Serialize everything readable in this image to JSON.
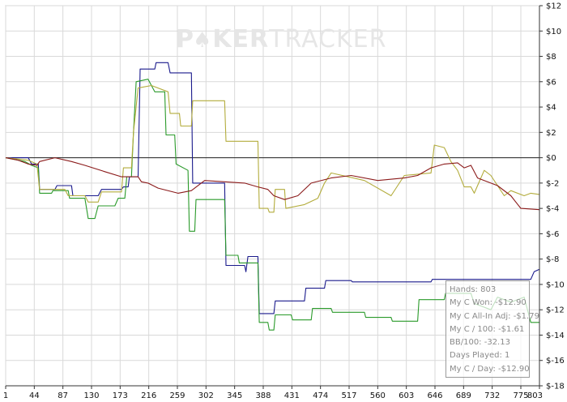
{
  "watermark": {
    "part1": "P",
    "part2": "KER",
    "part3": "TRACKER"
  },
  "colors": {
    "blue": "#1a1a8c",
    "green": "#2a9a2a",
    "olive": "#b3ac3c",
    "red": "#8b1a1a",
    "grid": "#d9d9d9",
    "zero_line": "#222222"
  },
  "stats": {
    "hands": "Hands: 803",
    "won": "My C Won: -$12.90",
    "allin_adj": "My C All-In Adj: -$1.79",
    "per100": "My C / 100: -$1.61",
    "bb100": "BB/100: -32.13",
    "days": "Days Played: 1",
    "per_day": "My C / Day: -$12.90"
  },
  "chart_data": {
    "type": "line",
    "title": "",
    "xlabel": "",
    "ylabel": "",
    "xlim": [
      1,
      803
    ],
    "ylim": [
      -18,
      12
    ],
    "grid": true,
    "y_axis_side": "right",
    "x_ticks": [
      1,
      44,
      87,
      130,
      173,
      216,
      259,
      302,
      345,
      388,
      431,
      474,
      517,
      560,
      603,
      646,
      689,
      732,
      775,
      803
    ],
    "y_ticks": [
      12,
      10,
      8,
      6,
      4,
      2,
      0,
      -2,
      -4,
      -6,
      -8,
      -10,
      -12,
      -14,
      -16,
      -18
    ],
    "y_tick_labels": [
      "$12",
      "$10",
      "$8",
      "$6",
      "$4",
      "$2",
      "$0",
      "$-2",
      "$-4",
      "$-6",
      "$-8",
      "$-10",
      "$-12",
      "$-14",
      "$-16",
      "$-18"
    ],
    "series": [
      {
        "color_key": "blue",
        "points": [
          [
            1,
            0
          ],
          [
            35,
            0
          ],
          [
            40,
            -0.5
          ],
          [
            50,
            -0.5
          ],
          [
            52,
            -2.5
          ],
          [
            75,
            -2.5
          ],
          [
            78,
            -2.2
          ],
          [
            100,
            -2.2
          ],
          [
            102,
            -3
          ],
          [
            140,
            -3
          ],
          [
            145,
            -2.5
          ],
          [
            175,
            -2.5
          ],
          [
            178,
            -2.3
          ],
          [
            185,
            -2.3
          ],
          [
            187,
            -1.5
          ],
          [
            200,
            -1.5
          ],
          [
            203,
            7
          ],
          [
            225,
            7
          ],
          [
            227,
            7.5
          ],
          [
            245,
            7.5
          ],
          [
            248,
            6.7
          ],
          [
            280,
            6.7
          ],
          [
            282,
            -2
          ],
          [
            330,
            -2
          ],
          [
            332,
            -8.5
          ],
          [
            360,
            -8.5
          ],
          [
            362,
            -9
          ],
          [
            365,
            -7.8
          ],
          [
            380,
            -7.8
          ],
          [
            382,
            -12.3
          ],
          [
            404,
            -12.3
          ],
          [
            406,
            -11.3
          ],
          [
            450,
            -11.3
          ],
          [
            452,
            -10.3
          ],
          [
            480,
            -10.3
          ],
          [
            482,
            -9.7
          ],
          [
            520,
            -9.7
          ],
          [
            522,
            -9.8
          ],
          [
            640,
            -9.8
          ],
          [
            642,
            -9.6
          ],
          [
            790,
            -9.6
          ],
          [
            795,
            -9
          ],
          [
            803,
            -8.8
          ]
        ]
      },
      {
        "color_key": "green",
        "points": [
          [
            1,
            0
          ],
          [
            30,
            -0.3
          ],
          [
            40,
            -0.6
          ],
          [
            50,
            -0.8
          ],
          [
            52,
            -2.8
          ],
          [
            70,
            -2.8
          ],
          [
            72,
            -2.6
          ],
          [
            95,
            -2.6
          ],
          [
            97,
            -3.2
          ],
          [
            120,
            -3.2
          ],
          [
            125,
            -4.8
          ],
          [
            135,
            -4.8
          ],
          [
            140,
            -3.8
          ],
          [
            165,
            -3.8
          ],
          [
            170,
            -3.2
          ],
          [
            180,
            -3.2
          ],
          [
            183,
            -1.5
          ],
          [
            190,
            -1.5
          ],
          [
            193,
            2
          ],
          [
            197,
            6
          ],
          [
            215,
            6.2
          ],
          [
            225,
            5.2
          ],
          [
            240,
            5.2
          ],
          [
            242,
            1.8
          ],
          [
            255,
            1.8
          ],
          [
            257,
            -0.5
          ],
          [
            275,
            -1
          ],
          [
            277,
            -5.8
          ],
          [
            285,
            -5.8
          ],
          [
            287,
            -3.3
          ],
          [
            330,
            -3.3
          ],
          [
            332,
            -7.7
          ],
          [
            350,
            -7.7
          ],
          [
            352,
            -8.3
          ],
          [
            380,
            -8.3
          ],
          [
            382,
            -13
          ],
          [
            395,
            -13
          ],
          [
            397,
            -13.6
          ],
          [
            404,
            -13.6
          ],
          [
            406,
            -12.4
          ],
          [
            430,
            -12.4
          ],
          [
            432,
            -12.8
          ],
          [
            460,
            -12.8
          ],
          [
            462,
            -11.9
          ],
          [
            490,
            -11.9
          ],
          [
            492,
            -12.2
          ],
          [
            540,
            -12.2
          ],
          [
            542,
            -12.6
          ],
          [
            580,
            -12.6
          ],
          [
            582,
            -12.9
          ],
          [
            620,
            -12.9
          ],
          [
            622,
            -11.2
          ],
          [
            660,
            -11.2
          ],
          [
            662,
            -10.7
          ],
          [
            700,
            -10.7
          ],
          [
            705,
            -11.5
          ],
          [
            730,
            -12
          ],
          [
            740,
            -11
          ],
          [
            760,
            -11.4
          ],
          [
            780,
            -11
          ],
          [
            790,
            -13
          ],
          [
            803,
            -13
          ]
        ]
      },
      {
        "color_key": "olive",
        "points": [
          [
            1,
            0
          ],
          [
            35,
            -0.2
          ],
          [
            48,
            -0.5
          ],
          [
            52,
            -2.5
          ],
          [
            90,
            -2.5
          ],
          [
            95,
            -3
          ],
          [
            120,
            -3
          ],
          [
            125,
            -3.5
          ],
          [
            140,
            -3.5
          ],
          [
            145,
            -2.7
          ],
          [
            175,
            -2.7
          ],
          [
            178,
            -0.8
          ],
          [
            190,
            -0.8
          ],
          [
            193,
            2
          ],
          [
            200,
            5.5
          ],
          [
            220,
            5.7
          ],
          [
            245,
            5.2
          ],
          [
            248,
            3.5
          ],
          [
            262,
            3.5
          ],
          [
            264,
            2.5
          ],
          [
            280,
            2.5
          ],
          [
            282,
            4.5
          ],
          [
            330,
            4.5
          ],
          [
            332,
            1.3
          ],
          [
            380,
            1.3
          ],
          [
            382,
            -4
          ],
          [
            395,
            -4
          ],
          [
            397,
            -4.3
          ],
          [
            404,
            -4.3
          ],
          [
            406,
            -2.5
          ],
          [
            420,
            -2.5
          ],
          [
            422,
            -4
          ],
          [
            450,
            -3.7
          ],
          [
            470,
            -3.2
          ],
          [
            480,
            -2
          ],
          [
            490,
            -1.2
          ],
          [
            540,
            -1.8
          ],
          [
            580,
            -3
          ],
          [
            600,
            -1.4
          ],
          [
            640,
            -1.2
          ],
          [
            645,
            1
          ],
          [
            660,
            0.8
          ],
          [
            670,
            -0.3
          ],
          [
            680,
            -1
          ],
          [
            690,
            -2.3
          ],
          [
            700,
            -2.3
          ],
          [
            705,
            -2.8
          ],
          [
            720,
            -1
          ],
          [
            730,
            -1.4
          ],
          [
            750,
            -3
          ],
          [
            760,
            -2.6
          ],
          [
            780,
            -3
          ],
          [
            790,
            -2.8
          ],
          [
            803,
            -2.9
          ]
        ]
      },
      {
        "color_key": "red",
        "points": [
          [
            1,
            0
          ],
          [
            20,
            -0.2
          ],
          [
            35,
            -0.5
          ],
          [
            48,
            -0.6
          ],
          [
            52,
            -0.3
          ],
          [
            75,
            0
          ],
          [
            100,
            -0.3
          ],
          [
            120,
            -0.6
          ],
          [
            150,
            -1.1
          ],
          [
            175,
            -1.5
          ],
          [
            200,
            -1.5
          ],
          [
            205,
            -1.9
          ],
          [
            215,
            -2
          ],
          [
            230,
            -2.4
          ],
          [
            260,
            -2.8
          ],
          [
            280,
            -2.6
          ],
          [
            300,
            -1.8
          ],
          [
            330,
            -1.9
          ],
          [
            360,
            -2
          ],
          [
            380,
            -2.3
          ],
          [
            395,
            -2.5
          ],
          [
            404,
            -3
          ],
          [
            420,
            -3.3
          ],
          [
            440,
            -3
          ],
          [
            460,
            -2
          ],
          [
            490,
            -1.6
          ],
          [
            520,
            -1.4
          ],
          [
            560,
            -1.8
          ],
          [
            600,
            -1.6
          ],
          [
            620,
            -1.4
          ],
          [
            640,
            -0.8
          ],
          [
            660,
            -0.5
          ],
          [
            680,
            -0.4
          ],
          [
            690,
            -0.8
          ],
          [
            700,
            -0.6
          ],
          [
            710,
            -1.6
          ],
          [
            740,
            -2.2
          ],
          [
            760,
            -3
          ],
          [
            775,
            -4
          ],
          [
            803,
            -4.1
          ]
        ]
      }
    ]
  }
}
